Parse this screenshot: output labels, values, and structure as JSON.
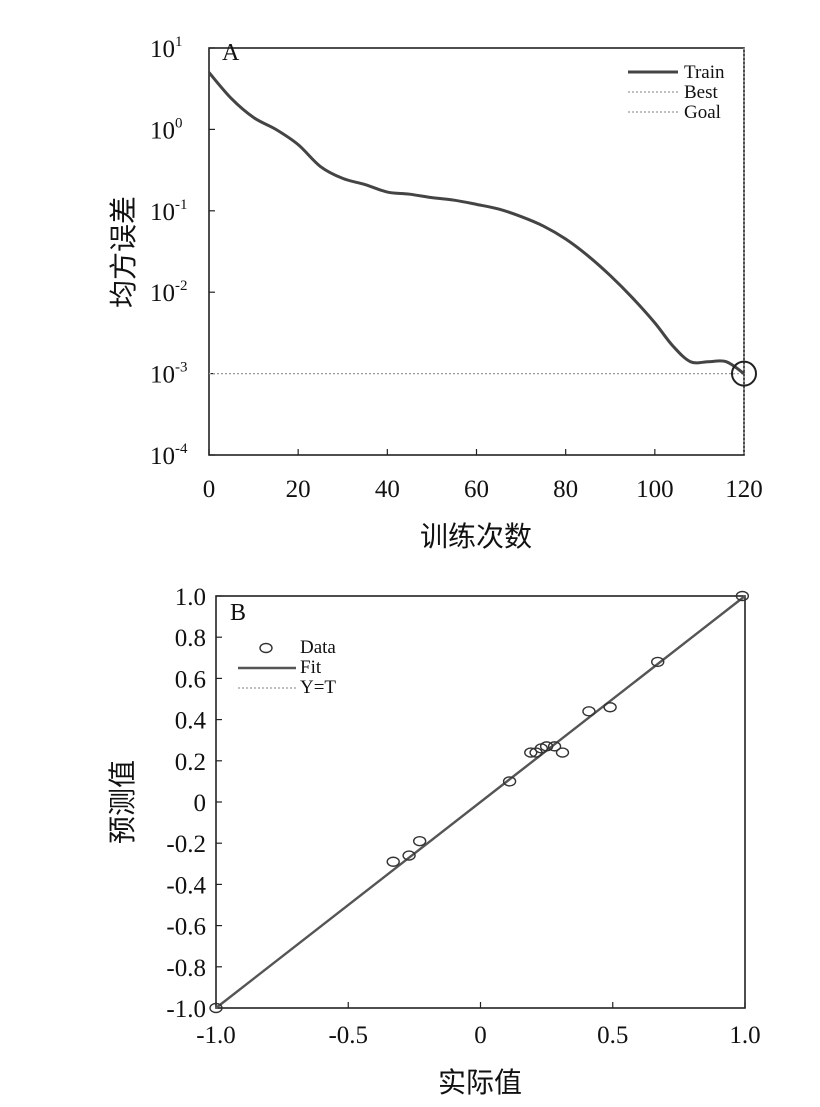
{
  "chart_data": [
    {
      "type": "line",
      "panel_label": "A",
      "xlabel": "训练次数",
      "ylabel": "均方误差",
      "y_scale": "log",
      "xlim": [
        0,
        120
      ],
      "ylim": [
        0.0001,
        10
      ],
      "x_ticks": [
        "0",
        "20",
        "40",
        "60",
        "80",
        "100",
        "120"
      ],
      "y_ticks": [
        {
          "base": "10",
          "exp": "1"
        },
        {
          "base": "10",
          "exp": "0"
        },
        {
          "base": "10",
          "exp": "-1"
        },
        {
          "base": "10",
          "exp": "-2"
        },
        {
          "base": "10",
          "exp": "-3"
        },
        {
          "base": "10",
          "exp": "-4"
        }
      ],
      "legend": {
        "position": "top-right",
        "entries": [
          "Train",
          "Best",
          "Goal"
        ]
      },
      "series": [
        {
          "name": "Train",
          "x": [
            0,
            5,
            10,
            15,
            20,
            25,
            30,
            35,
            40,
            45,
            50,
            55,
            60,
            65,
            70,
            75,
            80,
            85,
            90,
            95,
            100,
            104,
            108,
            112,
            116,
            120
          ],
          "y": [
            5,
            2.4,
            1.4,
            1.0,
            0.65,
            0.35,
            0.25,
            0.21,
            0.17,
            0.16,
            0.145,
            0.135,
            0.12,
            0.105,
            0.085,
            0.065,
            0.045,
            0.028,
            0.016,
            0.0085,
            0.0042,
            0.0022,
            0.0014,
            0.0014,
            0.0014,
            0.001
          ]
        }
      ],
      "best": {
        "x": 120,
        "y": 0.001
      }
    },
    {
      "type": "scatter",
      "panel_label": "B",
      "xlabel": "实际值",
      "ylabel": "预测值",
      "xlim": [
        -1,
        1
      ],
      "ylim": [
        -1,
        1
      ],
      "x_ticks": [
        "-1.0",
        "-0.5",
        "0",
        "0.5",
        "1.0"
      ],
      "y_ticks": [
        "1.0",
        "0.8",
        "0.6",
        "0.4",
        "0.2",
        "0",
        "-0.2",
        "-0.4",
        "-0.6",
        "-0.8",
        "-1.0"
      ],
      "legend": {
        "position": "top-left",
        "entries": [
          "Data",
          "Fit",
          "Y=T"
        ]
      },
      "data_points": {
        "x": [
          -1.0,
          -0.33,
          -0.27,
          -0.23,
          0.11,
          0.19,
          0.21,
          0.23,
          0.25,
          0.28,
          0.31,
          0.41,
          0.49,
          0.67,
          0.99
        ],
        "y": [
          -1.0,
          -0.29,
          -0.26,
          -0.19,
          0.1,
          0.24,
          0.24,
          0.26,
          0.27,
          0.27,
          0.24,
          0.44,
          0.46,
          0.68,
          1.0
        ]
      },
      "fit": {
        "x": [
          -1.0,
          1.0
        ],
        "y": [
          -1.0,
          1.0
        ]
      }
    }
  ]
}
